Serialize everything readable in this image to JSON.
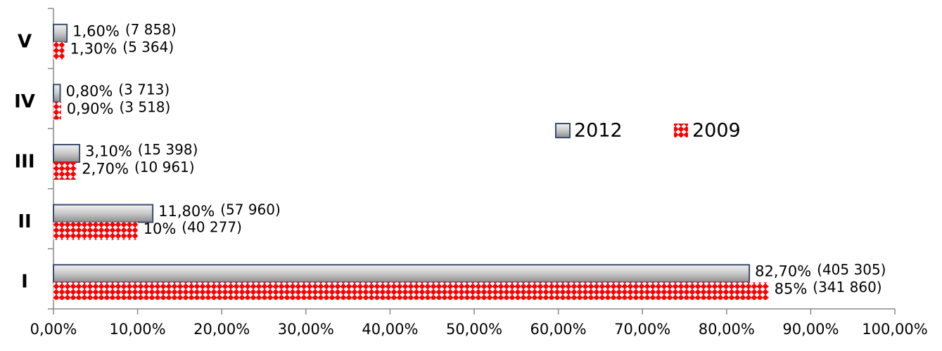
{
  "chart_data": {
    "type": "hbar",
    "categories": [
      "I",
      "II",
      "III",
      "IV",
      "V"
    ],
    "series": [
      {
        "name": "2012",
        "color": "#8c8c8c",
        "edge": "#3b4e6e",
        "fill_style": "gradient",
        "values": [
          82.7,
          11.8,
          3.1,
          0.8,
          1.6
        ],
        "value_labels": [
          "82,70%",
          "11,80%",
          "3,10%",
          "0,80%",
          "1,60%"
        ],
        "count_labels": [
          "(405 305)",
          "(57 960)",
          "(15 398)",
          "(3 713)",
          "(7 858)"
        ]
      },
      {
        "name": "2009",
        "color": "#ff0000",
        "edge": "#ff0000",
        "fill_style": "checker",
        "values": [
          85,
          10,
          2.7,
          0.9,
          1.3
        ],
        "value_labels": [
          "85%",
          "10%",
          "2,70%",
          "0,90%",
          "1,30%"
        ],
        "count_labels": [
          "(341 860)",
          "(40 277)",
          "(10 961)",
          "(3 518)",
          "(5 364)"
        ]
      }
    ],
    "xlim": [
      0,
      100
    ],
    "xticks": [
      {
        "value": 0,
        "label": "0,00%"
      },
      {
        "value": 10,
        "label": "10,00%"
      },
      {
        "value": 20,
        "label": "20,00%"
      },
      {
        "value": 30,
        "label": "30,00%"
      },
      {
        "value": 40,
        "label": "40,00%"
      },
      {
        "value": 50,
        "label": "50,00%"
      },
      {
        "value": 60,
        "label": "60,00%"
      },
      {
        "value": 70,
        "label": "70,00%"
      },
      {
        "value": 80,
        "label": "80,00%"
      },
      {
        "value": 90,
        "label": "90,00%"
      },
      {
        "value": 100,
        "label": "100,00%"
      }
    ],
    "legend": "center-right"
  }
}
